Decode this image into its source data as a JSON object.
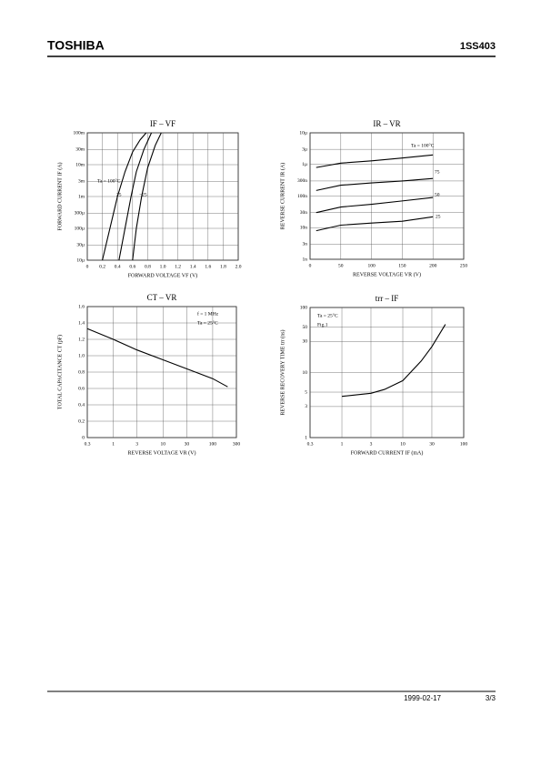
{
  "header": {
    "brand": "TOSHIBA",
    "part": "1SS403"
  },
  "footer": {
    "date": "1999-02-17",
    "page": "3/3"
  },
  "chart_data": [
    {
      "type": "line",
      "title": "IF – VF",
      "xlabel": "FORWARD VOLTAGE VF (V)",
      "ylabel": "FORWARD CURRENT IF (A)",
      "xlim": [
        0,
        2
      ],
      "xticks": [
        0,
        0.2,
        0.4,
        0.6,
        0.8,
        {
          "value": 1,
          "label": "1.0"
        },
        1.2,
        1.4,
        1.6,
        1.8,
        {
          "value": 2,
          "label": "2.0"
        }
      ],
      "ylim": [
        1e-05,
        0.1
      ],
      "ylog": true,
      "yticks": [
        {
          "value": 1e-05,
          "label": "10µ"
        },
        {
          "value": 3e-05,
          "label": "30µ"
        },
        {
          "value": 0.0001,
          "label": "100µ"
        },
        {
          "value": 0.0003,
          "label": "300µ"
        },
        {
          "value": 0.001,
          "label": "1m"
        },
        {
          "value": 0.003,
          "label": "3m"
        },
        {
          "value": 0.01,
          "label": "10m"
        },
        {
          "value": 0.03,
          "label": "30m"
        },
        {
          "value": 0.1,
          "label": "100m"
        }
      ],
      "grid": true,
      "annotations": [
        "Ta = 100°C",
        "25",
        "−25"
      ],
      "series": [
        {
          "color": "#000",
          "x": [
            0.2,
            0.3,
            0.4,
            0.5,
            0.6,
            0.7,
            0.78
          ],
          "values": [
            1e-05,
            0.0001,
            0.001,
            0.006,
            0.025,
            0.06,
            0.1
          ]
        },
        {
          "color": "#000",
          "x": [
            0.42,
            0.5,
            0.58,
            0.65,
            0.75,
            0.85
          ],
          "values": [
            1e-05,
            0.0001,
            0.001,
            0.006,
            0.03,
            0.1
          ]
        },
        {
          "color": "#000",
          "x": [
            0.6,
            0.65,
            0.72,
            0.8,
            0.9,
            0.98
          ],
          "values": [
            1e-05,
            0.0001,
            0.001,
            0.008,
            0.04,
            0.1
          ]
        }
      ]
    },
    {
      "type": "line",
      "title": "IR – VR",
      "xlabel": "REVERSE VOLTAGE VR (V)",
      "ylabel": "REVERSE CURRENT IR (A)",
      "xlim": [
        0,
        250
      ],
      "xticks": [
        0,
        50,
        100,
        150,
        200,
        250
      ],
      "ylim": [
        1e-09,
        1e-05
      ],
      "ylog": true,
      "yticks": [
        {
          "value": 1e-09,
          "label": "1n"
        },
        {
          "value": 3e-09,
          "label": "3n"
        },
        {
          "value": 1e-08,
          "label": "10n"
        },
        {
          "value": 3e-08,
          "label": "30n"
        },
        {
          "value": 1e-07,
          "label": "100n"
        },
        {
          "value": 3e-07,
          "label": "300n"
        },
        {
          "value": 1e-06,
          "label": "1µ"
        },
        {
          "value": 3e-06,
          "label": "3µ"
        },
        {
          "value": 1e-05,
          "label": "10µ"
        }
      ],
      "grid": true,
      "annotations": [
        "Ta = 100°C",
        "75",
        "50",
        "25"
      ],
      "series": [
        {
          "color": "#000",
          "x": [
            10,
            50,
            100,
            150,
            200
          ],
          "values": [
            8e-07,
            1.1e-06,
            1.3e-06,
            1.6e-06,
            2e-06
          ]
        },
        {
          "color": "#000",
          "x": [
            10,
            50,
            100,
            150,
            200
          ],
          "values": [
            1.5e-07,
            2.2e-07,
            2.6e-07,
            3e-07,
            3.6e-07
          ]
        },
        {
          "color": "#000",
          "x": [
            10,
            50,
            100,
            150,
            200
          ],
          "values": [
            3e-08,
            4.5e-08,
            5.5e-08,
            7e-08,
            9e-08
          ]
        },
        {
          "color": "#000",
          "x": [
            10,
            50,
            100,
            150,
            200
          ],
          "values": [
            8e-09,
            1.2e-08,
            1.4e-08,
            1.6e-08,
            2.2e-08
          ]
        }
      ]
    },
    {
      "type": "line",
      "title": "CT – VR",
      "xlabel": "REVERSE VOLTAGE VR (V)",
      "ylabel": "TOTAL CAPACITANCE CT (pF)",
      "xlim": [
        0.3,
        300
      ],
      "xlog": true,
      "xticks": [
        0.3,
        1,
        3,
        10,
        30,
        100,
        300
      ],
      "ylim": [
        0,
        1.6
      ],
      "yticks": [
        0,
        0.2,
        0.4,
        0.6,
        0.8,
        {
          "value": 1,
          "label": "1.0"
        },
        1.2,
        1.4,
        1.6
      ],
      "grid": true,
      "annotations": [
        "f = 1 MHz",
        "Ta = 25°C"
      ],
      "series": [
        {
          "color": "#000",
          "x": [
            0.3,
            1,
            3,
            10,
            30,
            100,
            200
          ],
          "values": [
            1.33,
            1.2,
            1.07,
            0.95,
            0.84,
            0.72,
            0.62
          ]
        }
      ]
    },
    {
      "type": "line",
      "title": "trr – IF",
      "xlabel": "FORWARD CURRENT IF (mA)",
      "ylabel": "REVERSE RECOVERY TIME trr (ns)",
      "xlim": [
        0.3,
        100
      ],
      "xlog": true,
      "xticks": [
        0.3,
        1,
        3,
        10,
        30,
        100
      ],
      "ylim": [
        1,
        100
      ],
      "ylog": true,
      "yticks": [
        1,
        3,
        5,
        10,
        30,
        50,
        100
      ],
      "grid": true,
      "annotations": [
        "Ta = 25°C",
        "Fig.1"
      ],
      "series": [
        {
          "color": "#000",
          "x": [
            1,
            3,
            5,
            10,
            20,
            30,
            50
          ],
          "values": [
            4.3,
            4.8,
            5.5,
            7.5,
            15,
            25,
            55
          ]
        }
      ]
    }
  ]
}
